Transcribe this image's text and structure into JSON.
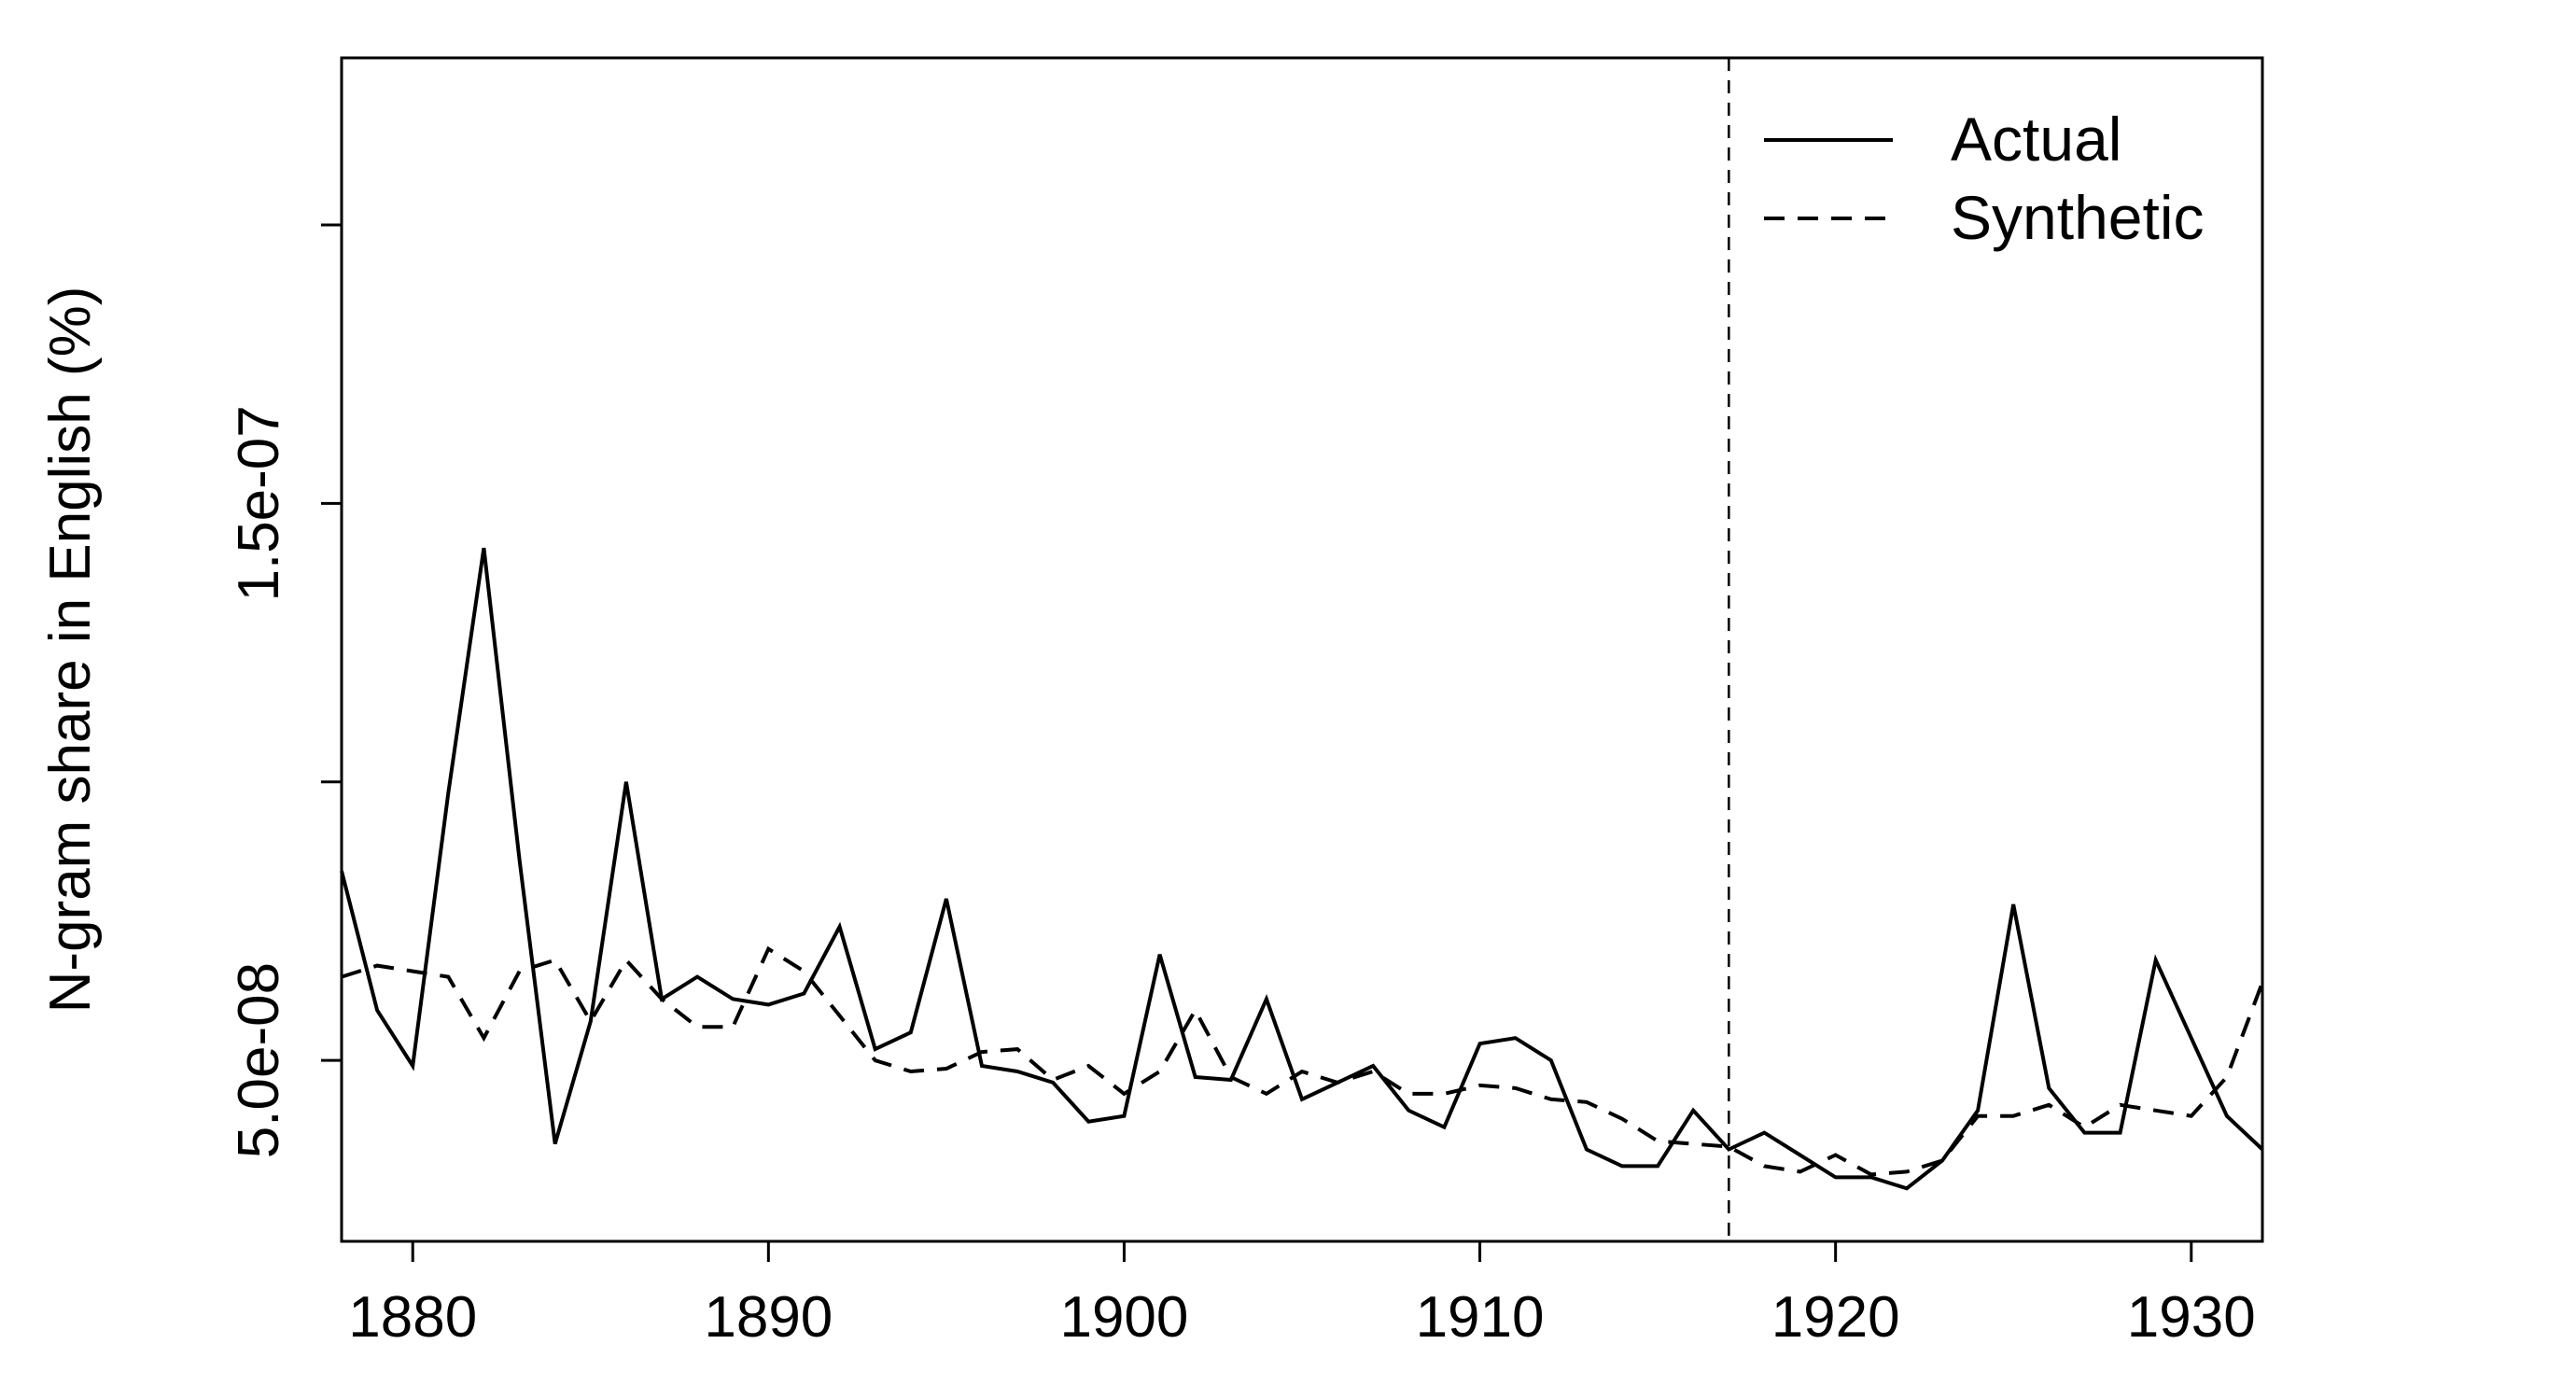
{
  "chart_data": {
    "type": "line",
    "title": "",
    "xlabel": "",
    "ylabel": "N-gram share in English (%)",
    "xlim": [
      1878,
      1932
    ],
    "ylim": [
      1.75e-08,
      2.3e-07
    ],
    "x_ticks": [
      1880,
      1890,
      1900,
      1910,
      1920,
      1930
    ],
    "x_tick_labels": [
      "1880",
      "1890",
      "1900",
      "1910",
      "1920",
      "1930"
    ],
    "y_ticks": [
      5e-08,
      1e-07,
      1.5e-07,
      2e-07
    ],
    "y_tick_labels": [
      "5.0e-08",
      "",
      "1.5e-07",
      ""
    ],
    "vline_x": 1917,
    "grid": false,
    "legend_position": "top-right",
    "x": [
      1878,
      1879,
      1880,
      1881,
      1882,
      1883,
      1884,
      1885,
      1886,
      1887,
      1888,
      1889,
      1890,
      1891,
      1892,
      1893,
      1894,
      1895,
      1896,
      1897,
      1898,
      1899,
      1900,
      1901,
      1902,
      1903,
      1904,
      1905,
      1906,
      1907,
      1908,
      1909,
      1910,
      1911,
      1912,
      1913,
      1914,
      1915,
      1916,
      1917,
      1918,
      1919,
      1920,
      1921,
      1922,
      1923,
      1924,
      1925,
      1926,
      1927,
      1928,
      1929,
      1930,
      1931,
      1932
    ],
    "series": [
      {
        "name": "Actual",
        "style": "solid",
        "color": "#000000",
        "values": [
          8.4e-08,
          5.9e-08,
          4.9e-08,
          9.8e-08,
          1.42e-07,
          8.6e-08,
          3.5e-08,
          5.7e-08,
          1e-07,
          6.1e-08,
          6.5e-08,
          6.1e-08,
          6e-08,
          6.2e-08,
          7.4e-08,
          5.2e-08,
          5.5e-08,
          7.9e-08,
          4.9e-08,
          4.8e-08,
          4.6e-08,
          3.9e-08,
          4e-08,
          6.9e-08,
          4.7e-08,
          4.65e-08,
          6.1e-08,
          4.3e-08,
          4.6e-08,
          4.9e-08,
          4.1e-08,
          3.8e-08,
          5.3e-08,
          5.4e-08,
          5e-08,
          3.4e-08,
          3.1e-08,
          3.1e-08,
          4.1e-08,
          3.4e-08,
          3.7e-08,
          3.3e-08,
          2.9e-08,
          2.9e-08,
          2.7e-08,
          3.2e-08,
          4.1e-08,
          7.8e-08,
          4.5e-08,
          3.7e-08,
          3.7e-08,
          6.8e-08,
          5.4e-08,
          4e-08,
          3.4e-08
        ]
      },
      {
        "name": "Synthetic",
        "style": "dashed",
        "color": "#000000",
        "values": [
          6.5e-08,
          6.7e-08,
          6.6e-08,
          6.5e-08,
          5.4e-08,
          6.6e-08,
          6.8e-08,
          5.7e-08,
          6.8e-08,
          6.1e-08,
          5.6e-08,
          5.6e-08,
          7e-08,
          6.6e-08,
          5.8e-08,
          5e-08,
          4.8e-08,
          4.85e-08,
          5.15e-08,
          5.2e-08,
          4.65e-08,
          4.9e-08,
          4.4e-08,
          4.8e-08,
          5.9e-08,
          4.7e-08,
          4.4e-08,
          4.8e-08,
          4.6e-08,
          4.8e-08,
          4.4e-08,
          4.4e-08,
          4.55e-08,
          4.5e-08,
          4.3e-08,
          4.25e-08,
          3.95e-08,
          3.55e-08,
          3.5e-08,
          3.45e-08,
          3.1e-08,
          3e-08,
          3.3e-08,
          2.95e-08,
          3e-08,
          3.2e-08,
          4e-08,
          4e-08,
          4.2e-08,
          3.8e-08,
          4.2e-08,
          4.1e-08,
          4e-08,
          4.7e-08,
          6.4e-08
        ]
      }
    ]
  }
}
